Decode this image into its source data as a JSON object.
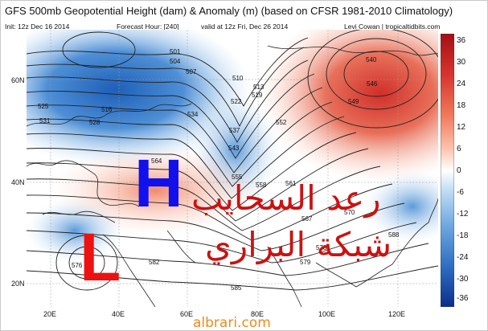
{
  "header": {
    "title": "GFS 500mb Geopotential Height (dam) & Anomaly (m) (based on CFSR 1981-2010 Climatology)",
    "init": "Init: 12z Dec 16 2014",
    "forecast": "Forecast Hour: [240]",
    "valid": "valid at 12z Fri, Dec 26 2014",
    "credit": "Levi Cowan | tropicaltidbits.com"
  },
  "map": {
    "lat_labels": [
      "60N",
      "40N",
      "20N"
    ],
    "lon_labels": [
      "20E",
      "40E",
      "60E",
      "80E",
      "100E",
      "120E"
    ],
    "contour_labels": [
      "501",
      "504",
      "507",
      "510",
      "513",
      "516",
      "519",
      "522",
      "525",
      "528",
      "531",
      "534",
      "537",
      "540",
      "543",
      "546",
      "549",
      "552",
      "555",
      "558",
      "561",
      "564",
      "567",
      "570",
      "573",
      "576",
      "579",
      "582",
      "585",
      "588"
    ],
    "colors": {
      "negative_deep": "#1e66c8",
      "negative_light": "#9cc7ec",
      "neutral": "#ffffff",
      "positive_light": "#f7b49a",
      "positive_deep": "#d7342e"
    }
  },
  "colorbar": {
    "ticks": [
      "36",
      "30",
      "24",
      "18",
      "12",
      "6",
      "0",
      "-6",
      "-12",
      "-18",
      "-24",
      "-30",
      "-36"
    ]
  },
  "overlay": {
    "high_letter": "H",
    "low_letter": "L",
    "arabic_line1": "رعد السحايب",
    "arabic_line2": "شبكة البراري",
    "watermark": "albrari.com"
  }
}
